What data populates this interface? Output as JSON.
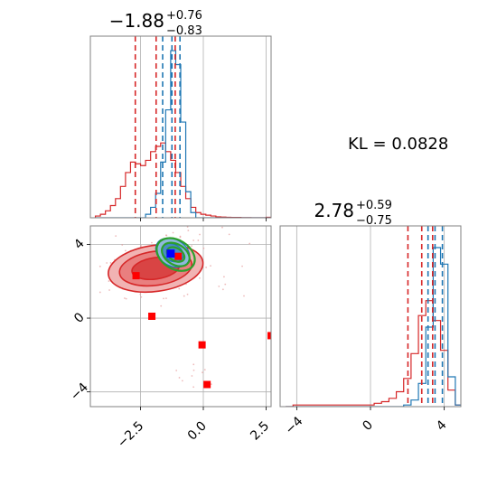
{
  "chart_data": [
    {
      "type": "histogram",
      "panel": "top-left marginal",
      "title": {
        "value": "−1.88",
        "upper": "+0.76",
        "lower": "−0.83"
      },
      "xlim": [
        -4.5,
        2.7
      ],
      "grid": true,
      "bin_centers": [
        -4.2,
        -4.0,
        -3.8,
        -3.6,
        -3.4,
        -3.2,
        -3.0,
        -2.8,
        -2.6,
        -2.4,
        -2.2,
        -2.0,
        -1.8,
        -1.6,
        -1.4,
        -1.2,
        -1.0,
        -0.8,
        -0.6,
        -0.4,
        -0.2,
        0.0,
        0.2,
        0.4,
        0.6,
        0.8,
        1.0,
        1.2,
        1.4,
        1.6,
        1.8,
        2.0,
        2.2,
        2.4,
        2.6
      ],
      "series": [
        {
          "name": "",
          "color": "#d62728",
          "values": [
            0.01,
            0.02,
            0.04,
            0.07,
            0.11,
            0.18,
            0.26,
            0.32,
            0.31,
            0.3,
            0.33,
            0.38,
            0.41,
            0.43,
            0.38,
            0.33,
            0.26,
            0.18,
            0.11,
            0.06,
            0.03,
            0.02,
            0.015,
            0.01,
            0.005,
            0.004,
            0.003,
            0.002,
            0.002,
            0.001,
            0.001,
            0.0,
            0.0,
            0.0,
            0.003
          ]
        },
        {
          "name": "",
          "color": "#1f77b4",
          "values": [
            0,
            0,
            0,
            0,
            0,
            0,
            0,
            0,
            0,
            0.0,
            0.02,
            0.06,
            0.14,
            0.32,
            0.62,
            0.96,
            0.88,
            0.55,
            0.15,
            0.03,
            0,
            0,
            0,
            0,
            0,
            0,
            0,
            0,
            0,
            0,
            0,
            0,
            0,
            0,
            0
          ]
        }
      ],
      "quantile_lines": {
        "red": [
          -2.71,
          -1.88,
          -1.12
        ],
        "blue": [
          -1.62,
          -1.25,
          -0.93
        ]
      },
      "xticks": [
        -2.5,
        0.0,
        2.5
      ]
    },
    {
      "type": "histogram",
      "panel": "bottom-right marginal",
      "title": {
        "value": "2.78",
        "upper": "+0.59",
        "lower": "−0.75"
      },
      "xlim": [
        -4.9,
        4.9
      ],
      "grid": true,
      "bin_centers": [
        -4.4,
        -4.0,
        -3.6,
        -3.2,
        -2.8,
        -2.4,
        -2.0,
        -1.6,
        -1.2,
        -0.8,
        -0.4,
        0.0,
        0.4,
        0.8,
        1.2,
        1.6,
        2.0,
        2.4,
        2.8,
        3.2,
        3.6,
        4.0,
        4.4,
        4.8
      ],
      "series": [
        {
          "name": "",
          "color": "#d62728",
          "values": [
            0.0,
            0.01,
            0.01,
            0.01,
            0.01,
            0.01,
            0.01,
            0.01,
            0.01,
            0.01,
            0.01,
            0.01,
            0.02,
            0.03,
            0.05,
            0.09,
            0.17,
            0.32,
            0.55,
            0.64,
            0.52,
            0.34,
            0.1,
            0.01
          ]
        },
        {
          "name": "",
          "color": "#1f77b4",
          "values": [
            0,
            0,
            0,
            0,
            0,
            0,
            0,
            0,
            0,
            0,
            0,
            0,
            0,
            0,
            0,
            0,
            0.01,
            0.04,
            0.14,
            0.48,
            0.96,
            0.86,
            0.18,
            0.01
          ]
        }
      ],
      "quantile_lines": {
        "red": [
          2.03,
          2.78,
          3.37
        ],
        "blue": [
          3.12,
          3.5,
          3.9
        ]
      },
      "xticks": [
        -4,
        0,
        4
      ]
    },
    {
      "type": "scatter",
      "panel": "bottom-left 2D",
      "xlim": [
        -4.5,
        2.7
      ],
      "ylim": [
        -4.8,
        5.0
      ],
      "grid": true,
      "xticks": [
        -2.5,
        0.0,
        2.5
      ],
      "yticks": [
        -4,
        0,
        4
      ],
      "red_contours": [
        {
          "center": [
            -1.9,
            2.7
          ],
          "rx": 1.9,
          "ry": 1.25
        },
        {
          "center": [
            -1.9,
            2.7
          ],
          "rx": 1.45,
          "ry": 0.92
        },
        {
          "center": [
            -1.9,
            2.7
          ],
          "rx": 0.95,
          "ry": 0.58
        }
      ],
      "blue_contours": [
        {
          "center": [
            -1.22,
            3.55
          ],
          "rx": 0.72,
          "ry": 0.72
        },
        {
          "center": [
            -1.22,
            3.55
          ],
          "rx": 0.45,
          "ry": 0.45
        }
      ],
      "green_contours": [
        {
          "center": [
            -1.1,
            3.45
          ],
          "rx": 0.82,
          "ry": 0.78
        },
        {
          "center": [
            -1.1,
            3.45
          ],
          "rx": 0.6,
          "ry": 0.55
        },
        {
          "center": [
            -1.1,
            3.45
          ],
          "rx": 0.38,
          "ry": 0.34
        }
      ],
      "red_markers": [
        {
          "x": -2.68,
          "y": 2.3
        },
        {
          "x": -2.05,
          "y": 0.1
        },
        {
          "x": -1.0,
          "y": 3.35
        },
        {
          "x": -0.05,
          "y": -1.45
        },
        {
          "x": 0.15,
          "y": -3.6
        },
        {
          "x": 2.7,
          "y": -0.95
        }
      ],
      "blue_markers": [
        {
          "x": -1.3,
          "y": 3.5
        }
      ]
    }
  ],
  "annotation": {
    "kl_text": "KL = 0.0828"
  }
}
